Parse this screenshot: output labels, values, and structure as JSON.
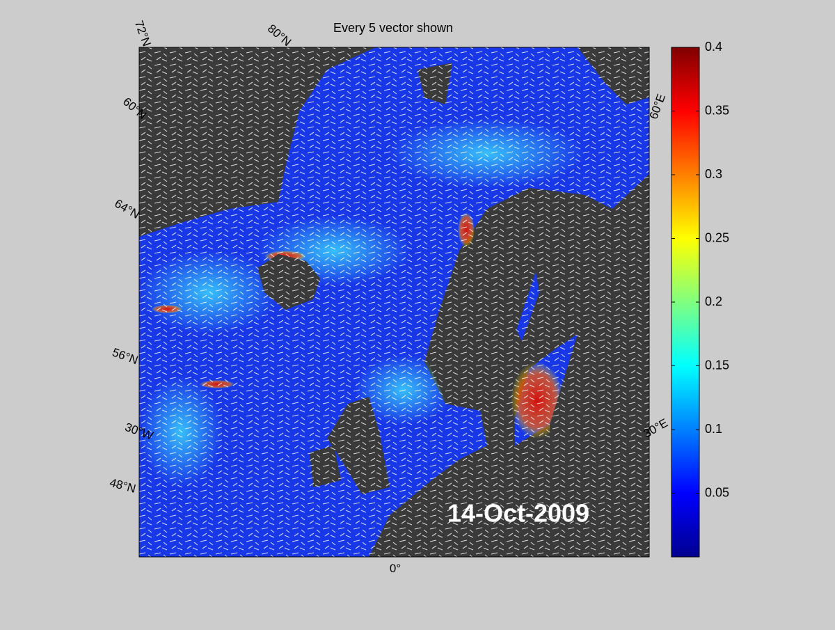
{
  "title": "Every 5 vector shown",
  "date_label": "14-Oct-2009",
  "graticule_labels": [
    "72°N",
    "80°N",
    "60°N",
    "64°N",
    "56°N",
    "30°W",
    "48°N",
    "0°",
    "30°E",
    "60°E"
  ],
  "colorbar": {
    "clim": [
      0,
      0.4
    ],
    "ticks": [
      0.05,
      0.1,
      0.15,
      0.2,
      0.25,
      0.3,
      0.35,
      0.4
    ],
    "colors": [
      "#00008f",
      "#0000ff",
      "#0080ff",
      "#00ffff",
      "#80ff80",
      "#ffff00",
      "#ff8000",
      "#ff0000",
      "#800000"
    ]
  }
}
